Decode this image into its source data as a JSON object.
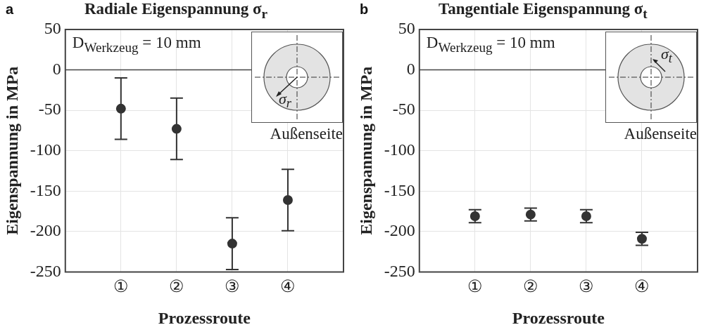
{
  "chart_data": [
    {
      "type": "scatter",
      "title": "Radiale Eigenspannung σ$_{r}$",
      "xlabel": "Prozessroute",
      "ylabel": "Eigenspannung in MPa",
      "categories": [
        "①",
        "②",
        "③",
        "④"
      ],
      "series": [
        {
          "color": "#333333",
          "values": [
            -48,
            -73,
            -215,
            -161
          ],
          "errors": [
            38,
            38,
            32,
            38
          ]
        }
      ],
      "ylim": [
        -250,
        50
      ],
      "yticks": [
        -250,
        -200,
        -150,
        -100,
        -50,
        0,
        50
      ],
      "grid": true,
      "marker": "circle",
      "ref_lines": [
        {
          "axis": "y",
          "value": 0
        }
      ],
      "annotations": [
        "a",
        "D$_{Werkzeug}$ = 10 mm",
        "σ$_{r}$",
        "Außenseite"
      ]
    },
    {
      "type": "scatter",
      "title": "Tangentiale Eigenspannung σ$_{t}$",
      "xlabel": "Prozessroute",
      "ylabel": "Eigenspannung in MPa",
      "categories": [
        "①",
        "②",
        "③",
        "④"
      ],
      "series": [
        {
          "color": "#333333",
          "values": [
            -181,
            -179,
            -181,
            -209
          ],
          "errors": [
            8,
            8,
            8,
            8
          ]
        }
      ],
      "ylim": [
        -250,
        50
      ],
      "yticks": [
        -250,
        -200,
        -150,
        -100,
        -50,
        0,
        50
      ],
      "grid": true,
      "marker": "circle",
      "ref_lines": [
        {
          "axis": "y",
          "value": 0
        }
      ],
      "annotations": [
        "b",
        "D$_{Werkzeug}$ = 10 mm",
        "σ$_{t}$",
        "Außenseite"
      ]
    }
  ]
}
